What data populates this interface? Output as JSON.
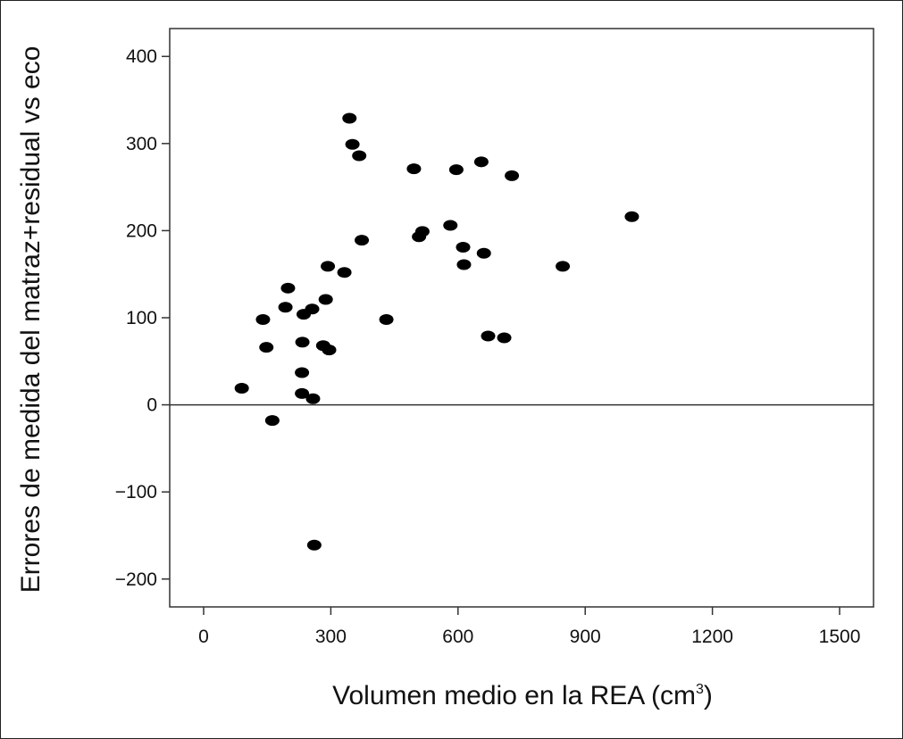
{
  "chart_data": {
    "type": "scatter",
    "title": "",
    "xlabel_main": "Volumen medio en la REA (cm",
    "xlabel_sup": "3",
    "xlabel_close": ")",
    "ylabel": "Errores de medida del matraz+residual vs eco",
    "xlim": [
      -80,
      1580
    ],
    "ylim": [
      -232,
      432
    ],
    "x_ticks": [
      0,
      300,
      600,
      900,
      1200,
      1500
    ],
    "y_ticks": [
      -200,
      -100,
      0,
      100,
      200,
      300,
      400
    ],
    "x_tick_labels": [
      "0",
      "300",
      "600",
      "900",
      "1200",
      "1500"
    ],
    "y_tick_labels": [
      "−200",
      "−100",
      "0",
      "100",
      "200",
      "300",
      "400"
    ],
    "reference_line_y": 0,
    "grid": false,
    "legend": "none",
    "marker_color": "#000000",
    "points": [
      {
        "x": 90,
        "y": 19
      },
      {
        "x": 140,
        "y": 98
      },
      {
        "x": 148,
        "y": 66
      },
      {
        "x": 162,
        "y": -18
      },
      {
        "x": 193,
        "y": 112
      },
      {
        "x": 199,
        "y": 134
      },
      {
        "x": 232,
        "y": 37
      },
      {
        "x": 232,
        "y": 13
      },
      {
        "x": 233,
        "y": 72
      },
      {
        "x": 236,
        "y": 104
      },
      {
        "x": 256,
        "y": 110
      },
      {
        "x": 258,
        "y": 7
      },
      {
        "x": 261,
        "y": -161
      },
      {
        "x": 282,
        "y": 68
      },
      {
        "x": 288,
        "y": 121
      },
      {
        "x": 293,
        "y": 159
      },
      {
        "x": 296,
        "y": 63
      },
      {
        "x": 332,
        "y": 152
      },
      {
        "x": 344,
        "y": 329
      },
      {
        "x": 351,
        "y": 299
      },
      {
        "x": 367,
        "y": 286
      },
      {
        "x": 373,
        "y": 189
      },
      {
        "x": 431,
        "y": 98
      },
      {
        "x": 496,
        "y": 271
      },
      {
        "x": 508,
        "y": 193
      },
      {
        "x": 516,
        "y": 199
      },
      {
        "x": 582,
        "y": 206
      },
      {
        "x": 596,
        "y": 270
      },
      {
        "x": 612,
        "y": 181
      },
      {
        "x": 614,
        "y": 161
      },
      {
        "x": 655,
        "y": 279
      },
      {
        "x": 661,
        "y": 174
      },
      {
        "x": 671,
        "y": 79
      },
      {
        "x": 709,
        "y": 77
      },
      {
        "x": 727,
        "y": 263
      },
      {
        "x": 847,
        "y": 159
      },
      {
        "x": 1010,
        "y": 216
      }
    ]
  }
}
